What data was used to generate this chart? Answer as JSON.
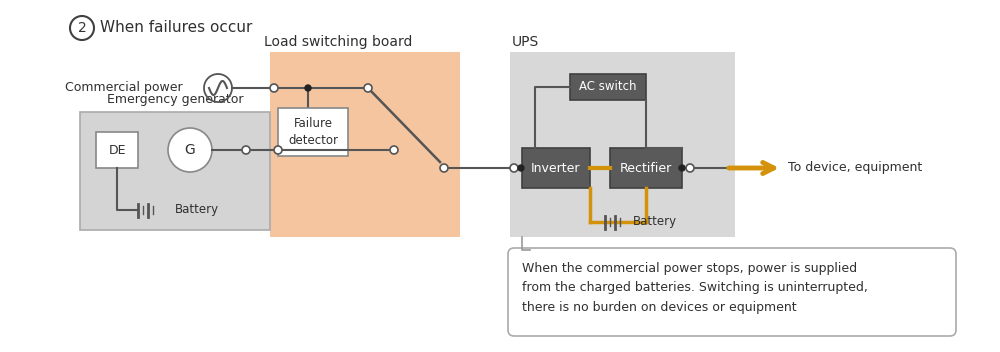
{
  "bg_color": "#ffffff",
  "load_board_color": "#f5c5a0",
  "ups_color": "#d8d8d8",
  "gen_box_color": "#d4d4d4",
  "dark_box_color": "#5a5a5a",
  "line_color": "#555555",
  "orange_line_color": "#d4920a",
  "annotation_text": "When the commercial power stops, power is supplied\nfrom the charged batteries. Switching is uninterrupted,\nthere is no burden on devices or equipment",
  "label_cp": "Commercial power",
  "label_eg": "Emergency generator",
  "label_lsb": "Load switching board",
  "label_ups": "UPS",
  "label_to_device": "To device, equipment",
  "label_battery1": "Battery",
  "label_battery2": "Battery",
  "label_DE": "DE",
  "label_G": "G",
  "label_inverter": "Inverter",
  "label_rectifier": "Rectifier",
  "label_ac_switch": "AC switch",
  "label_failure": "Failure\ndetector",
  "title_num": "2",
  "title_text": "When failures occur"
}
